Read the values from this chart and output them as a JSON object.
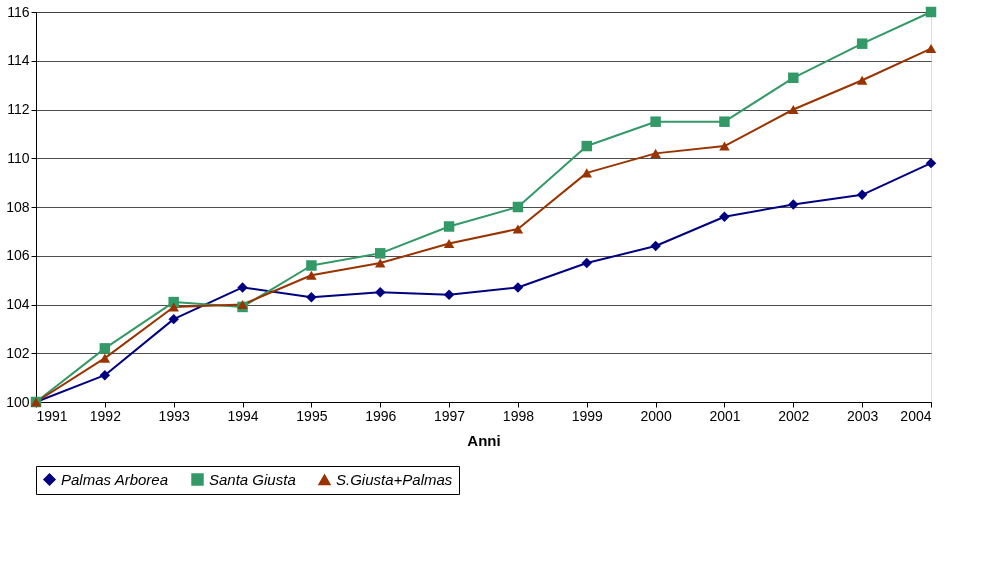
{
  "chart_data": {
    "type": "line",
    "xlabel": "Anni",
    "categories": [
      "1991",
      "1992",
      "1993",
      "1994",
      "1995",
      "1996",
      "1997",
      "1998",
      "1999",
      "2000",
      "2001",
      "2002",
      "2003",
      "2004"
    ],
    "series": [
      {
        "name": "Palmas Arborea",
        "color": "#000080",
        "marker": "diamond",
        "values": [
          100,
          101.1,
          103.4,
          104.7,
          104.3,
          104.5,
          104.4,
          104.7,
          105.7,
          106.4,
          107.6,
          108.1,
          108.5,
          109.8
        ]
      },
      {
        "name": "Santa Giusta",
        "color": "#339966",
        "marker": "square",
        "values": [
          100,
          102.2,
          104.1,
          103.9,
          105.6,
          106.1,
          107.2,
          108.0,
          110.5,
          111.5,
          111.5,
          113.3,
          114.7,
          116.0
        ]
      },
      {
        "name": "S.Giusta+Palmas",
        "color": "#993300",
        "marker": "triangle",
        "values": [
          100,
          101.8,
          103.9,
          104.0,
          105.2,
          105.7,
          106.5,
          107.1,
          109.4,
          110.2,
          110.5,
          112.0,
          113.2,
          114.5
        ]
      }
    ],
    "ylim": [
      100,
      116
    ],
    "yticks": [
      100,
      102,
      104,
      106,
      108,
      110,
      112,
      114,
      116
    ],
    "grid": "y",
    "legend": "bottom",
    "line_style": "solid"
  }
}
